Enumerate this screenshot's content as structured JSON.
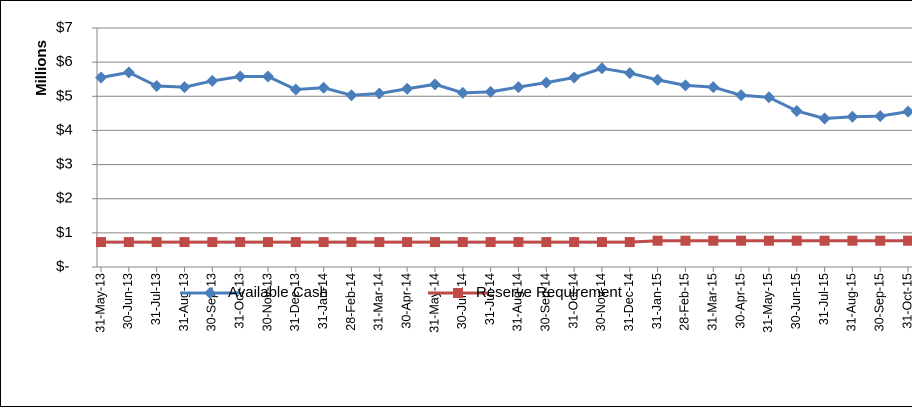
{
  "chart_data": {
    "type": "line",
    "y_label": "Millions",
    "categories": [
      "31-May-13",
      "30-Jun-13",
      "31-Jul-13",
      "31-Aug-13",
      "30-Sep-13",
      "31-Oct-13",
      "30-Nov-13",
      "31-Dec-13",
      "31-Jan-14",
      "28-Feb-14",
      "31-Mar-14",
      "30-Apr-14",
      "31-May-14",
      "30-Jun-14",
      "31-Jul-14",
      "31-Aug-14",
      "30-Sep-14",
      "31-Oct-14",
      "30-Nov-14",
      "31-Dec-14",
      "31-Jan-15",
      "28-Feb-15",
      "31-Mar-15",
      "30-Apr-15",
      "31-May-15",
      "30-Jun-15",
      "31-Jul-15",
      "31-Aug-15",
      "30-Sep-15",
      "31-Oct-15"
    ],
    "series": [
      {
        "name": "Available Cash",
        "color": "#4a7ebb",
        "marker": "diamond",
        "values": [
          5.55,
          5.7,
          5.3,
          5.27,
          5.45,
          5.58,
          5.58,
          5.2,
          5.25,
          5.03,
          5.08,
          5.22,
          5.35,
          5.1,
          5.13,
          5.27,
          5.4,
          5.55,
          5.82,
          5.68,
          5.48,
          5.32,
          5.27,
          5.03,
          4.97,
          4.57,
          4.35,
          4.4,
          4.42,
          4.55
        ]
      },
      {
        "name": "Reserve Requirement",
        "color": "#be4b48",
        "marker": "square",
        "values": [
          0.73,
          0.73,
          0.73,
          0.73,
          0.73,
          0.73,
          0.73,
          0.73,
          0.73,
          0.73,
          0.73,
          0.73,
          0.73,
          0.73,
          0.73,
          0.73,
          0.73,
          0.73,
          0.73,
          0.73,
          0.77,
          0.77,
          0.77,
          0.77,
          0.77,
          0.77,
          0.77,
          0.77,
          0.77,
          0.77
        ]
      }
    ],
    "ylim": [
      0,
      7
    ],
    "yticks": [
      {
        "value": 0,
        "label": "$-"
      },
      {
        "value": 1,
        "label": "$1"
      },
      {
        "value": 2,
        "label": "$2"
      },
      {
        "value": 3,
        "label": "$3"
      },
      {
        "value": 4,
        "label": "$4"
      },
      {
        "value": 5,
        "label": "$5"
      },
      {
        "value": 6,
        "label": "$6"
      },
      {
        "value": 7,
        "label": "$7"
      }
    ],
    "grid": true,
    "legend": "bottom"
  }
}
